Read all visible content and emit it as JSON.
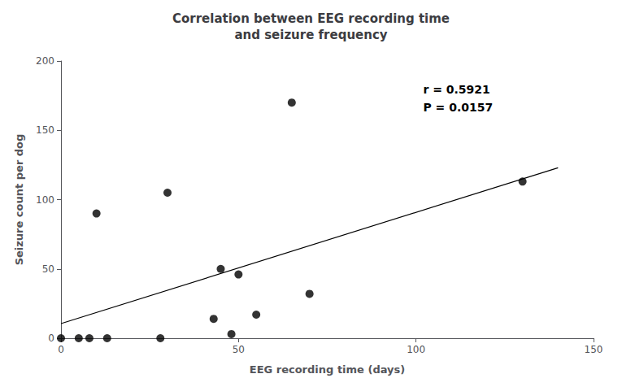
{
  "chart_data": {
    "type": "scatter",
    "title": "Correlation between EEG recording time\nand seizure frequency",
    "xlabel": "EEG recording time (days)",
    "ylabel": "Seizure count per dog",
    "series": [
      {
        "type": "scatter",
        "color": "#000000",
        "x": [
          0,
          5,
          8,
          10,
          13,
          28,
          30,
          43,
          45,
          48,
          50,
          55,
          65,
          70,
          130
        ],
        "values": [
          0,
          0,
          0,
          90,
          0,
          0,
          105,
          14,
          50,
          3,
          46,
          17,
          170,
          32,
          113
        ]
      },
      {
        "type": "line",
        "color": "#000000",
        "x": [
          0,
          140
        ],
        "values": [
          10.5525259,
          122.952019
        ]
      }
    ],
    "xlim": [
      0,
      150
    ],
    "ylim": [
      0,
      200
    ],
    "xticks": [
      0,
      50,
      100,
      150
    ],
    "yticks": [
      0,
      50,
      100,
      150,
      200
    ],
    "annotation": "r = 0.5921\nP = 0.0157",
    "grid": false
  }
}
